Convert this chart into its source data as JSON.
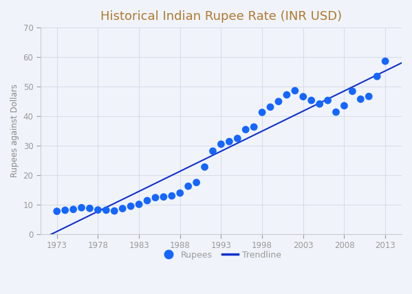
{
  "title": "Historical Indian Rupee Rate (INR USD)",
  "xlabel": "",
  "ylabel": "Rupees against Dollars",
  "xlim": [
    1971,
    2015
  ],
  "ylim": [
    0,
    70
  ],
  "xticks": [
    1973,
    1978,
    1983,
    1988,
    1993,
    1998,
    2003,
    2008,
    2013
  ],
  "yticks": [
    0,
    10,
    20,
    30,
    40,
    50,
    60,
    70
  ],
  "scatter_color": "#1565ff",
  "trendline_color": "#1030cc",
  "title_color": "#b07830",
  "label_color": "#888888",
  "tick_color": "#999999",
  "background_color": "#f0f4fa",
  "plot_bg_color": "#f0f4fa",
  "grid_color": "#d8dce8",
  "data": [
    [
      1973,
      7.74
    ],
    [
      1974,
      8.1
    ],
    [
      1975,
      8.38
    ],
    [
      1976,
      8.96
    ],
    [
      1977,
      8.74
    ],
    [
      1978,
      8.19
    ],
    [
      1979,
      8.13
    ],
    [
      1980,
      7.86
    ],
    [
      1981,
      8.66
    ],
    [
      1982,
      9.46
    ],
    [
      1983,
      10.1
    ],
    [
      1984,
      11.36
    ],
    [
      1985,
      12.37
    ],
    [
      1986,
      12.61
    ],
    [
      1987,
      12.96
    ],
    [
      1988,
      13.92
    ],
    [
      1989,
      16.23
    ],
    [
      1990,
      17.5
    ],
    [
      1991,
      22.74
    ],
    [
      1992,
      28.14
    ],
    [
      1993,
      30.49
    ],
    [
      1994,
      31.37
    ],
    [
      1995,
      32.43
    ],
    [
      1996,
      35.43
    ],
    [
      1997,
      36.31
    ],
    [
      1998,
      41.26
    ],
    [
      1999,
      43.06
    ],
    [
      2000,
      44.94
    ],
    [
      2001,
      47.19
    ],
    [
      2002,
      48.61
    ],
    [
      2003,
      46.58
    ],
    [
      2004,
      45.32
    ],
    [
      2005,
      44.1
    ],
    [
      2006,
      45.31
    ],
    [
      2007,
      41.35
    ],
    [
      2008,
      43.51
    ],
    [
      2009,
      48.41
    ],
    [
      2010,
      45.73
    ],
    [
      2011,
      46.67
    ],
    [
      2012,
      53.44
    ],
    [
      2013,
      58.6
    ]
  ],
  "trendline_x0": 1971,
  "trendline_x1": 2015
}
